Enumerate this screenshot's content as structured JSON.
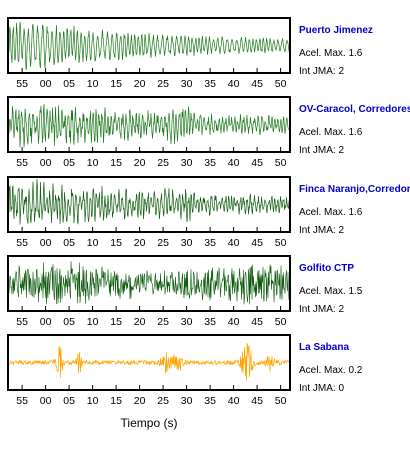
{
  "colors": {
    "name": "#0000cc",
    "frame": "#000000"
  },
  "chart_data": {
    "type": "line",
    "xlabel": "Tiempo (s)",
    "xlim": [
      52,
      112
    ],
    "tick_labels": [
      "55",
      "00",
      "05",
      "10",
      "15",
      "20",
      "25",
      "30",
      "35",
      "40",
      "45",
      "50"
    ],
    "tick_positions": [
      55,
      60,
      65,
      70,
      75,
      80,
      85,
      90,
      95,
      100,
      105,
      110
    ],
    "panels": [
      {
        "station": "Puerto Jimenez",
        "accel_label": "Acel. Max.",
        "accel_value": "1.6",
        "jma_label": "Int JMA:",
        "jma_value": "2",
        "color": "#1f7a1f",
        "style": "long-period"
      },
      {
        "station": "OV-Caracol, Corredores",
        "accel_label": "Acel. Max.",
        "accel_value": "1.6",
        "jma_label": "Int JMA:",
        "jma_value": "2",
        "color": "#1f7a1f",
        "style": "mixed"
      },
      {
        "station": "Finca Naranjo,Corredores",
        "accel_label": "Acel. Max.",
        "accel_value": "1.6",
        "jma_label": "Int JMA:",
        "jma_value": "2",
        "color": "#146014",
        "style": "mixed"
      },
      {
        "station": "Golfito CTP",
        "accel_label": "Acel. Max.",
        "accel_value": "1.5",
        "jma_label": "Int JMA:",
        "jma_value": "2",
        "color": "#0b5a0b",
        "style": "dense"
      },
      {
        "station": "La Sabana",
        "accel_label": "Acel. Max.",
        "accel_value": "0.2",
        "jma_label": "Int JMA:",
        "jma_value": "0",
        "color": "#ffa500",
        "style": "spiky"
      }
    ]
  }
}
